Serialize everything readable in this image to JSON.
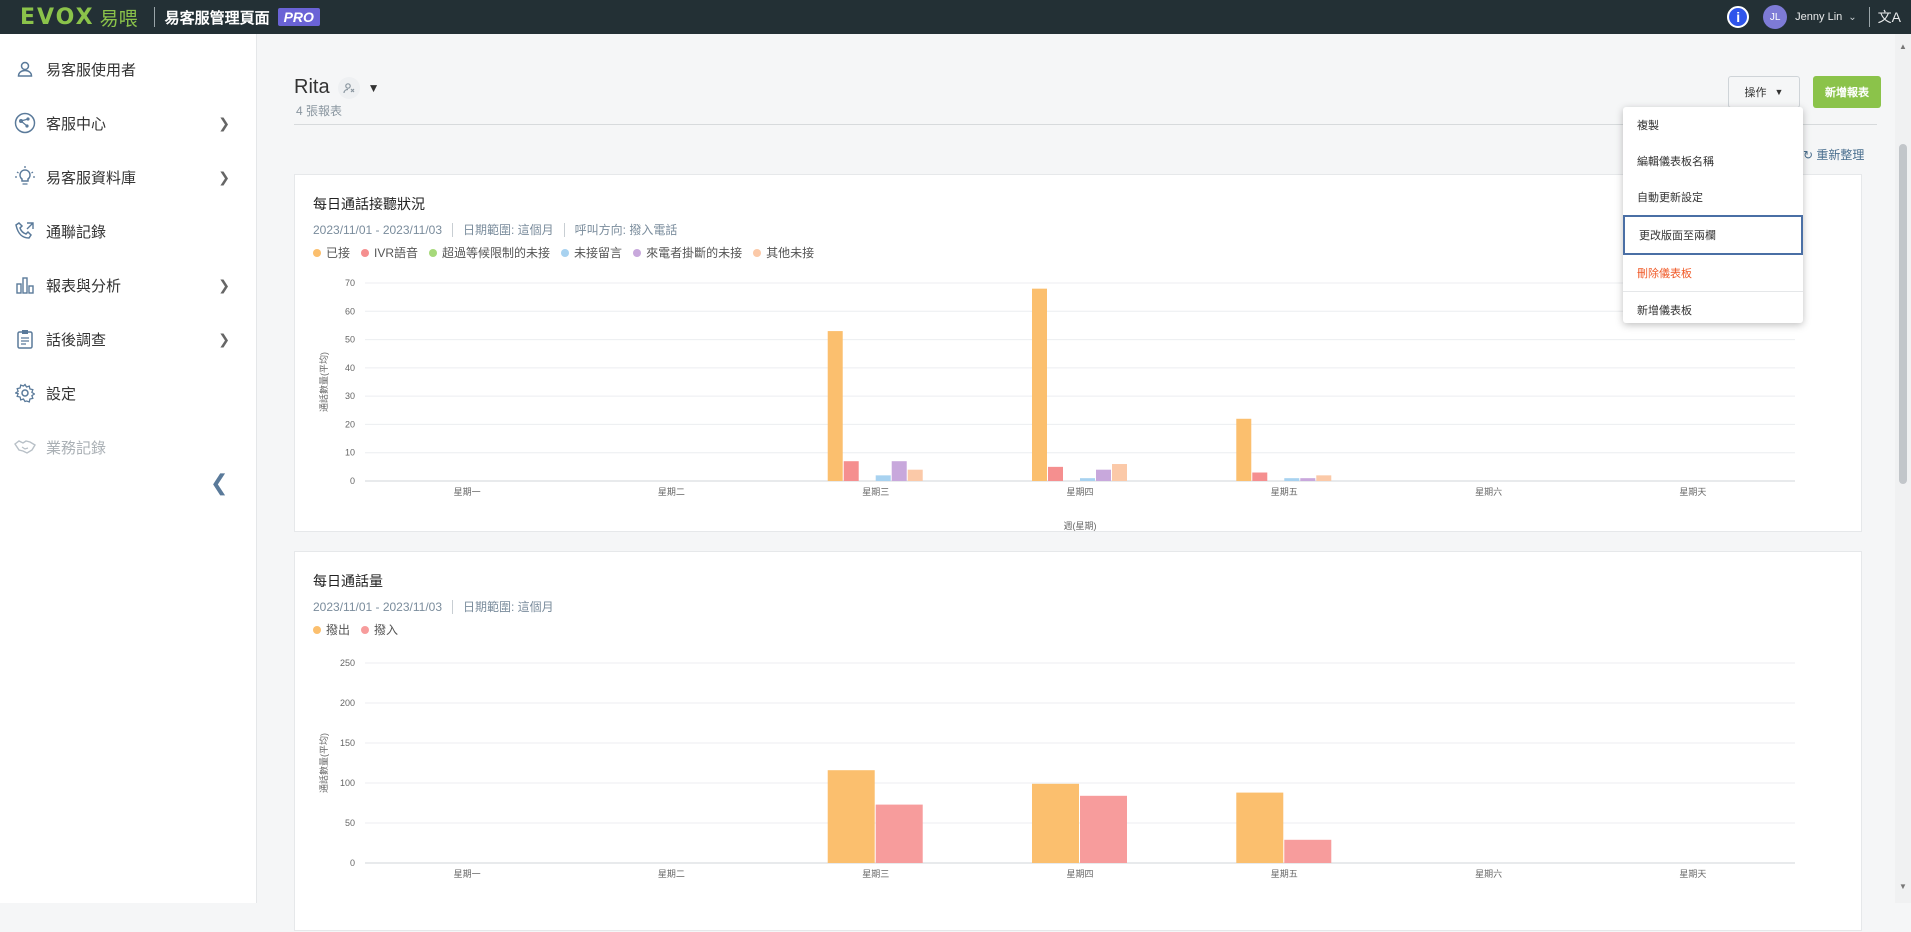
{
  "header": {
    "logo_text": "EVOX",
    "logo_cn": "易喂",
    "app_title": "易客服管理頁面",
    "pro_badge": "PRO",
    "info_icon": "info-icon",
    "user_initials": "JL",
    "user_name": "Jenny Lin",
    "lang_icon": "文A"
  },
  "sidebar": {
    "items": [
      {
        "label": "易客服使用者",
        "icon": "user-icon",
        "has_chevron": false
      },
      {
        "label": "客服中心",
        "icon": "network-icon",
        "has_chevron": true
      },
      {
        "label": "易客服資料庫",
        "icon": "lightbulb-icon",
        "has_chevron": true
      },
      {
        "label": "通聯記錄",
        "icon": "phone-log-icon",
        "has_chevron": false
      },
      {
        "label": "報表與分析",
        "icon": "bar-chart-icon",
        "has_chevron": true
      },
      {
        "label": "話後調查",
        "icon": "clipboard-icon",
        "has_chevron": true
      },
      {
        "label": "設定",
        "icon": "gear-icon",
        "has_chevron": false
      },
      {
        "label": "業務記錄",
        "icon": "handshake-icon",
        "has_chevron": false,
        "disabled": true
      }
    ],
    "collapse_icon": "chevron-left-icon"
  },
  "page": {
    "title": "Rita",
    "subtitle": "4 張報表",
    "ops_button": "操作",
    "new_report_button": "新增報表",
    "refresh_label": "重新整理"
  },
  "dropdown": {
    "items": [
      "複製",
      "編輯儀表板名稱",
      "自動更新設定",
      "更改版面至兩欄",
      "刪除儀表板",
      "新增儀表板"
    ],
    "active_index": 3,
    "danger_index": 4
  },
  "colors": {
    "answered": "#fbbf6e",
    "ivr": "#f58f8f",
    "timeout": "#a6d97a",
    "voicemail": "#a8d2f0",
    "caller_hangup": "#c8a8dc",
    "other": "#fbc9a8",
    "outbound": "#fbbf6e",
    "inbound": "#f79c9c",
    "accent_green": "#8bc34a",
    "pro_purple": "#6a63d6"
  },
  "cards": [
    {
      "title": "每日通話接聽狀況",
      "date_range": "2023/11/01 - 2023/11/03",
      "period": "日期範圍: 這個月",
      "direction": "呼叫方向: 撥入電話",
      "legend": [
        "已接",
        "IVR語音",
        "超過等候限制的未接",
        "未接留言",
        "來電者掛斷的未接",
        "其他未接"
      ]
    },
    {
      "title": "每日通話量",
      "date_range": "2023/11/01 - 2023/11/03",
      "period": "日期範圍: 這個月",
      "legend": [
        "撥出",
        "撥入"
      ]
    }
  ],
  "chart_data": [
    {
      "type": "bar",
      "title": "每日通話接聽狀況",
      "xlabel": "週(星期)",
      "ylabel": "通話數量(平均)",
      "categories": [
        "星期一",
        "星期二",
        "星期三",
        "星期四",
        "星期五",
        "星期六",
        "星期天"
      ],
      "ylim": [
        0,
        70
      ],
      "yticks": [
        0,
        10,
        20,
        30,
        40,
        50,
        60,
        70
      ],
      "series": [
        {
          "name": "已接",
          "values": [
            0,
            0,
            53,
            68,
            22,
            0,
            0
          ]
        },
        {
          "name": "IVR語音",
          "values": [
            0,
            0,
            7,
            5,
            3,
            0,
            0
          ]
        },
        {
          "name": "超過等候限制的未接",
          "values": [
            0,
            0,
            0,
            0,
            0,
            0,
            0
          ]
        },
        {
          "name": "未接留言",
          "values": [
            0,
            0,
            2,
            1,
            1,
            0,
            0
          ]
        },
        {
          "name": "來電者掛斷的未接",
          "values": [
            0,
            0,
            7,
            4,
            1,
            0,
            0
          ]
        },
        {
          "name": "其他未接",
          "values": [
            0,
            0,
            4,
            6,
            2,
            0,
            0
          ]
        }
      ]
    },
    {
      "type": "bar",
      "title": "每日通話量",
      "ylabel": "通話數量(平均)",
      "categories": [
        "星期一",
        "星期二",
        "星期三",
        "星期四",
        "星期五",
        "星期六",
        "星期天"
      ],
      "ylim": [
        0,
        250
      ],
      "yticks": [
        0,
        50,
        100,
        150,
        200,
        250
      ],
      "series": [
        {
          "name": "撥出",
          "values": [
            0,
            0,
            116,
            99,
            88,
            0,
            0
          ]
        },
        {
          "name": "撥入",
          "values": [
            0,
            0,
            73,
            84,
            29,
            0,
            0
          ]
        }
      ]
    }
  ]
}
